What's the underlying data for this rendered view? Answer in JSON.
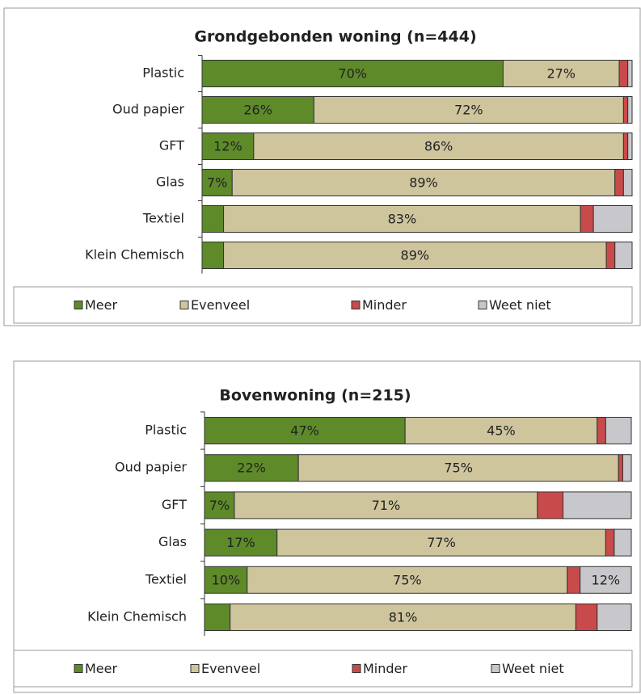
{
  "chart_data": [
    {
      "type": "bar",
      "orientation": "horizontal",
      "stacked": true,
      "title": "Grondgebonden woning (n=444)",
      "categories": [
        "Plastic",
        "Oud papier",
        "GFT",
        "Glas",
        "Textiel",
        "Klein Chemisch"
      ],
      "xlim": [
        0,
        100
      ],
      "series": [
        {
          "name": "Meer",
          "color": "#5e8a2a",
          "values": [
            70,
            26,
            12,
            7,
            5,
            5
          ],
          "value_labels": [
            "70%",
            "26%",
            "12%",
            "7%",
            null,
            null
          ]
        },
        {
          "name": "Evenveel",
          "color": "#cfc59d",
          "values": [
            27,
            72,
            86,
            89,
            83,
            89
          ],
          "value_labels": [
            "27%",
            "72%",
            "86%",
            "89%",
            "83%",
            "89%"
          ]
        },
        {
          "name": "Minder",
          "color": "#c94a4a",
          "values": [
            2,
            1,
            1,
            2,
            3,
            2
          ],
          "value_labels": [
            null,
            null,
            null,
            null,
            null,
            null
          ]
        },
        {
          "name": "Weet niet",
          "color": "#c8c8cc",
          "values": [
            1,
            1,
            1,
            2,
            9,
            4
          ],
          "value_labels": [
            null,
            null,
            null,
            null,
            null,
            null
          ]
        }
      ]
    },
    {
      "type": "bar",
      "orientation": "horizontal",
      "stacked": true,
      "title": "Bovenwoning (n=215)",
      "categories": [
        "Plastic",
        "Oud papier",
        "GFT",
        "Glas",
        "Textiel",
        "Klein Chemisch"
      ],
      "xlim": [
        0,
        100
      ],
      "series": [
        {
          "name": "Meer",
          "color": "#5e8a2a",
          "values": [
            47,
            22,
            7,
            17,
            10,
            6
          ],
          "value_labels": [
            "47%",
            "22%",
            "7%",
            "17%",
            "10%",
            null
          ]
        },
        {
          "name": "Evenveel",
          "color": "#cfc59d",
          "values": [
            45,
            75,
            71,
            77,
            75,
            81
          ],
          "value_labels": [
            "45%",
            "75%",
            "71%",
            "77%",
            "75%",
            "81%"
          ]
        },
        {
          "name": "Minder",
          "color": "#c94a4a",
          "values": [
            2,
            1,
            6,
            2,
            3,
            5
          ],
          "value_labels": [
            null,
            null,
            null,
            null,
            null,
            null
          ]
        },
        {
          "name": "Weet niet",
          "color": "#c8c8cc",
          "values": [
            6,
            2,
            16,
            4,
            12,
            8
          ],
          "value_labels": [
            null,
            null,
            null,
            null,
            "12%",
            null
          ]
        }
      ]
    }
  ]
}
